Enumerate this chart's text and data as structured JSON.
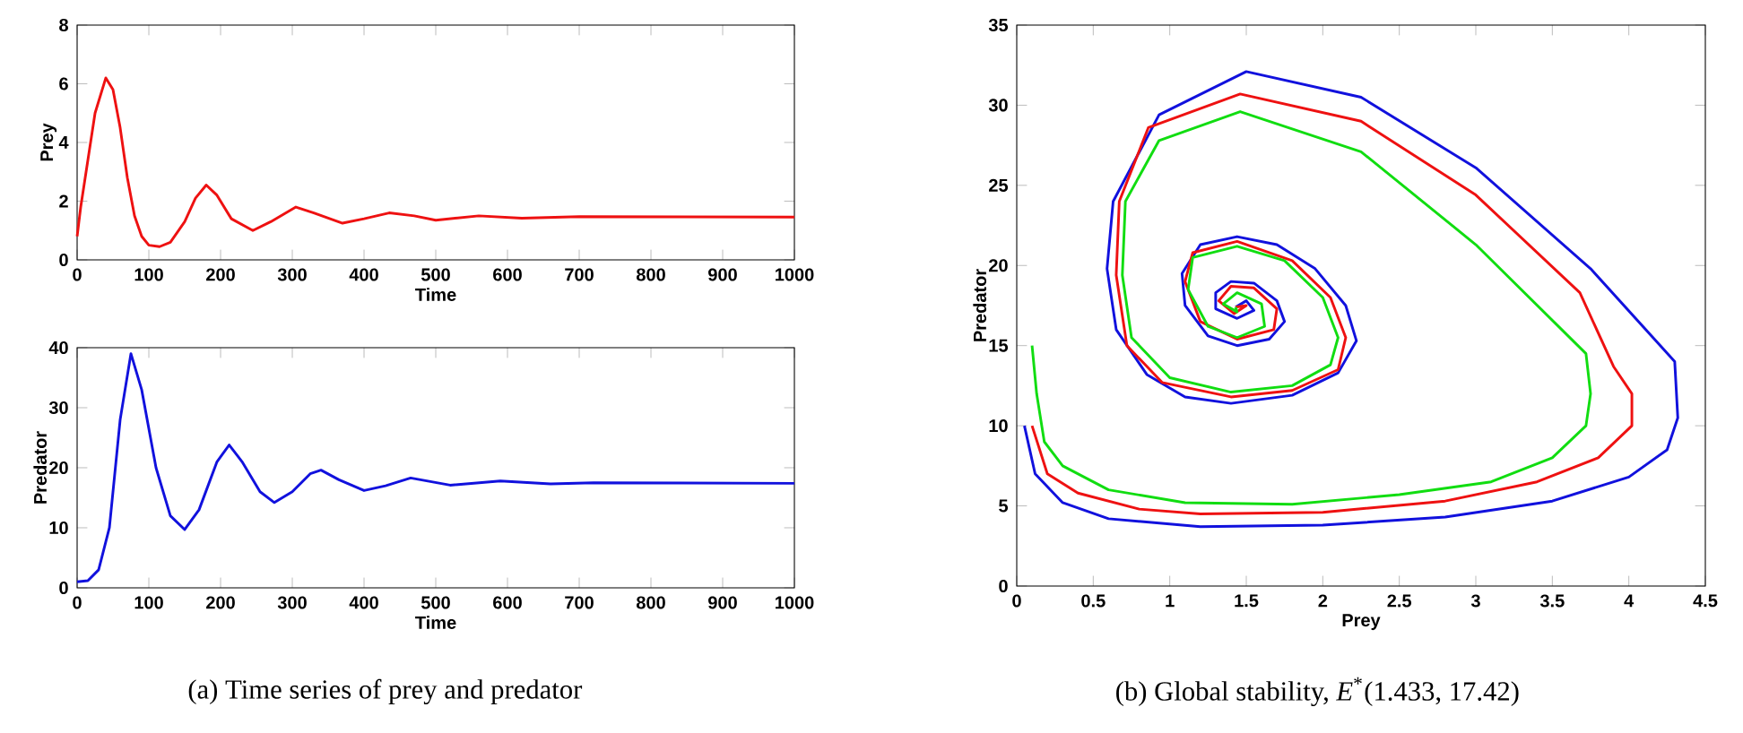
{
  "chart_data": [
    {
      "type": "line",
      "ylabel": "Prey",
      "xlabel": "Time",
      "xlim": [
        0,
        1000
      ],
      "ylim": [
        0,
        8
      ],
      "xticks": [
        0,
        100,
        200,
        300,
        400,
        500,
        600,
        700,
        800,
        900,
        1000
      ],
      "yticks": [
        0,
        2,
        4,
        6,
        8
      ],
      "marker": "none",
      "line_style": "solid",
      "grid": false,
      "series": [
        {
          "color": "#ee1111",
          "x": [
            0,
            5,
            15,
            25,
            40,
            50,
            60,
            70,
            80,
            90,
            100,
            115,
            130,
            150,
            165,
            180,
            195,
            215,
            245,
            270,
            305,
            330,
            370,
            400,
            435,
            470,
            500,
            560,
            620,
            700,
            1000
          ],
          "values": [
            0.8,
            1.8,
            3.4,
            5.0,
            6.2,
            5.8,
            4.5,
            2.8,
            1.5,
            0.8,
            0.5,
            0.45,
            0.6,
            1.3,
            2.1,
            2.55,
            2.2,
            1.4,
            1.0,
            1.3,
            1.8,
            1.6,
            1.25,
            1.4,
            1.6,
            1.5,
            1.35,
            1.5,
            1.42,
            1.47,
            1.46
          ]
        }
      ]
    },
    {
      "type": "line",
      "ylabel": "Predator",
      "xlabel": "Time",
      "xlim": [
        0,
        1000
      ],
      "ylim": [
        0,
        40
      ],
      "xticks": [
        0,
        100,
        200,
        300,
        400,
        500,
        600,
        700,
        800,
        900,
        1000
      ],
      "yticks": [
        0,
        10,
        20,
        30,
        40
      ],
      "marker": "none",
      "line_style": "solid",
      "grid": false,
      "annotations": [
        "(a) Time series of prey and predator"
      ],
      "series": [
        {
          "color": "#1111dd",
          "x": [
            0,
            15,
            30,
            45,
            60,
            75,
            90,
            110,
            130,
            150,
            170,
            195,
            212,
            230,
            255,
            275,
            300,
            325,
            340,
            365,
            400,
            430,
            465,
            520,
            590,
            660,
            720,
            1000
          ],
          "values": [
            1,
            1.2,
            3,
            10,
            28,
            39,
            33,
            20,
            12,
            9.7,
            13,
            21,
            23.8,
            21,
            16,
            14.2,
            16,
            19,
            19.6,
            18,
            16.2,
            17,
            18.3,
            17.1,
            17.8,
            17.3,
            17.5,
            17.4
          ]
        }
      ]
    },
    {
      "type": "line",
      "ylabel": "Predator",
      "xlabel": "Prey",
      "xlim": [
        0,
        4.5
      ],
      "ylim": [
        0,
        35
      ],
      "xticks": [
        0,
        0.5,
        1,
        1.5,
        2,
        2.5,
        3,
        3.5,
        4,
        4.5
      ],
      "yticks": [
        0,
        5,
        10,
        15,
        20,
        25,
        30,
        35
      ],
      "marker": "none",
      "line_style": "solid",
      "grid": false,
      "annotations": [
        "(b) Global stability, *E*$^{*}$(1.433, 17.42)"
      ],
      "series": [
        {
          "color": "#1111dd",
          "x": [
            0.05,
            0.12,
            0.3,
            0.6,
            1.2,
            2.0,
            2.8,
            3.5,
            4.0,
            4.25,
            4.32,
            4.3,
            3.75,
            3.0,
            2.25,
            1.5,
            0.93,
            0.63,
            0.59,
            0.65,
            0.85,
            1.1,
            1.4,
            1.8,
            2.1,
            2.22,
            2.15,
            1.95,
            1.7,
            1.44,
            1.2,
            1.08,
            1.1,
            1.25,
            1.44,
            1.65,
            1.75,
            1.7,
            1.55,
            1.4,
            1.3,
            1.3,
            1.44,
            1.55,
            1.5,
            1.43
          ],
          "values": [
            10,
            7,
            5.2,
            4.2,
            3.7,
            3.8,
            4.3,
            5.3,
            6.8,
            8.5,
            10.5,
            14,
            19.8,
            26.1,
            30.5,
            32.1,
            29.4,
            24.0,
            19.8,
            16,
            13.2,
            11.8,
            11.4,
            11.9,
            13.3,
            15.3,
            17.5,
            19.8,
            21.3,
            21.8,
            21.3,
            19.5,
            17.5,
            15.6,
            15.0,
            15.4,
            16.5,
            17.8,
            18.9,
            19.0,
            18.3,
            17.3,
            16.7,
            17.2,
            17.8,
            17.4
          ]
        },
        {
          "color": "#ee1111",
          "x": [
            0.1,
            0.2,
            0.4,
            0.8,
            1.2,
            2.0,
            2.8,
            3.4,
            3.8,
            4.02,
            4.02,
            3.9,
            3.68,
            3.0,
            2.25,
            1.46,
            0.86,
            0.67,
            0.65,
            0.72,
            0.95,
            1.4,
            1.8,
            2.1,
            2.15,
            2.05,
            1.8,
            1.44,
            1.15,
            1.1,
            1.2,
            1.44,
            1.68,
            1.7,
            1.55,
            1.4,
            1.32,
            1.42,
            1.5,
            1.43
          ],
          "values": [
            10,
            7,
            5.8,
            4.8,
            4.5,
            4.6,
            5.3,
            6.5,
            8,
            10,
            12,
            13.7,
            18.3,
            24.4,
            29,
            30.7,
            28.6,
            24,
            19.4,
            15,
            12.7,
            11.8,
            12.2,
            13.5,
            15.5,
            18,
            20.3,
            21.5,
            20.8,
            19,
            16.5,
            15.4,
            16,
            17.3,
            18.6,
            18.7,
            17.8,
            17.0,
            17.5,
            17.4
          ]
        },
        {
          "color": "#11dd11",
          "x": [
            0.1,
            0.13,
            0.18,
            0.3,
            0.6,
            1.1,
            1.8,
            2.5,
            3.1,
            3.5,
            3.72,
            3.75,
            3.72,
            3.0,
            2.25,
            1.46,
            0.93,
            0.71,
            0.69,
            0.75,
            1.0,
            1.4,
            1.8,
            2.05,
            2.1,
            2.0,
            1.75,
            1.44,
            1.15,
            1.12,
            1.25,
            1.44,
            1.62,
            1.6,
            1.44,
            1.35,
            1.44,
            1.43
          ],
          "values": [
            15,
            12,
            9,
            7.5,
            6,
            5.2,
            5.1,
            5.7,
            6.5,
            8,
            10,
            12,
            14.5,
            21.3,
            27.1,
            29.6,
            27.8,
            24,
            19.4,
            15.5,
            13,
            12.1,
            12.5,
            13.8,
            15.5,
            18,
            20.3,
            21.2,
            20.5,
            18.5,
            16.2,
            15.5,
            16.2,
            17.6,
            18.3,
            17.6,
            17.1,
            17.4
          ]
        }
      ]
    }
  ]
}
